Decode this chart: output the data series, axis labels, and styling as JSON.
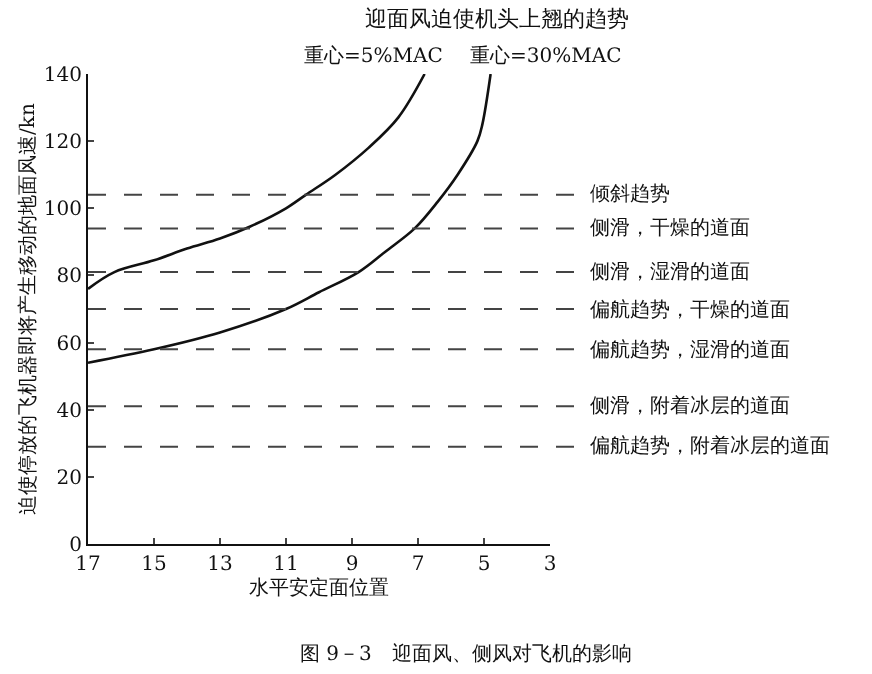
{
  "chart_data": {
    "type": "line",
    "title": "迎面风迫使机头上翘的趋势",
    "xlabel": "水平安定面位置",
    "ylabel": "迫使停放的飞机器即将产生移动的地面风速/kn",
    "xlim": [
      17,
      3
    ],
    "xticks": [
      17,
      15,
      13,
      11,
      9,
      7,
      5,
      3
    ],
    "ylim": [
      0,
      140
    ],
    "yticks": [
      0,
      20,
      40,
      60,
      80,
      100,
      120,
      140
    ],
    "series": [
      {
        "name": "重心=5%MAC",
        "color": "#111111",
        "x": [
          17,
          16.2,
          15,
          14,
          13,
          12.1,
          11,
          10.4,
          9.5,
          8.5,
          7.6,
          6.8
        ],
        "values": [
          76,
          81,
          84.5,
          88,
          91,
          94.5,
          100,
          104,
          110,
          118,
          127,
          140
        ]
      },
      {
        "name": "重心=30%MAC",
        "color": "#111111",
        "x": [
          17,
          15,
          13,
          11,
          10,
          8.8,
          8,
          7.1,
          6.4,
          5.8,
          5.2,
          5.05,
          4.8
        ],
        "values": [
          54,
          58,
          63,
          70,
          75,
          81,
          87,
          94,
          102,
          110,
          120,
          125,
          140
        ]
      }
    ],
    "ref_lines": [
      {
        "axis": "y",
        "value": 104,
        "label": "倾斜趋势"
      },
      {
        "axis": "y",
        "value": 94,
        "label": "侧滑，干燥的道面"
      },
      {
        "axis": "y",
        "value": 81,
        "label": "侧滑，湿滑的道面"
      },
      {
        "axis": "y",
        "value": 70,
        "label": "偏航趋势，干燥的道面"
      },
      {
        "axis": "y",
        "value": 58,
        "label": "偏航趋势，湿滑的道面"
      },
      {
        "axis": "y",
        "value": 41,
        "label": "侧滑，附着冰层的道面"
      },
      {
        "axis": "y",
        "value": 29,
        "label": "偏航趋势，附着冰层的道面"
      }
    ],
    "annotations": [
      "图 9－3　迎面风、侧风对飞机的影响"
    ],
    "legend": false,
    "marker": "none",
    "line_style": "solid"
  }
}
